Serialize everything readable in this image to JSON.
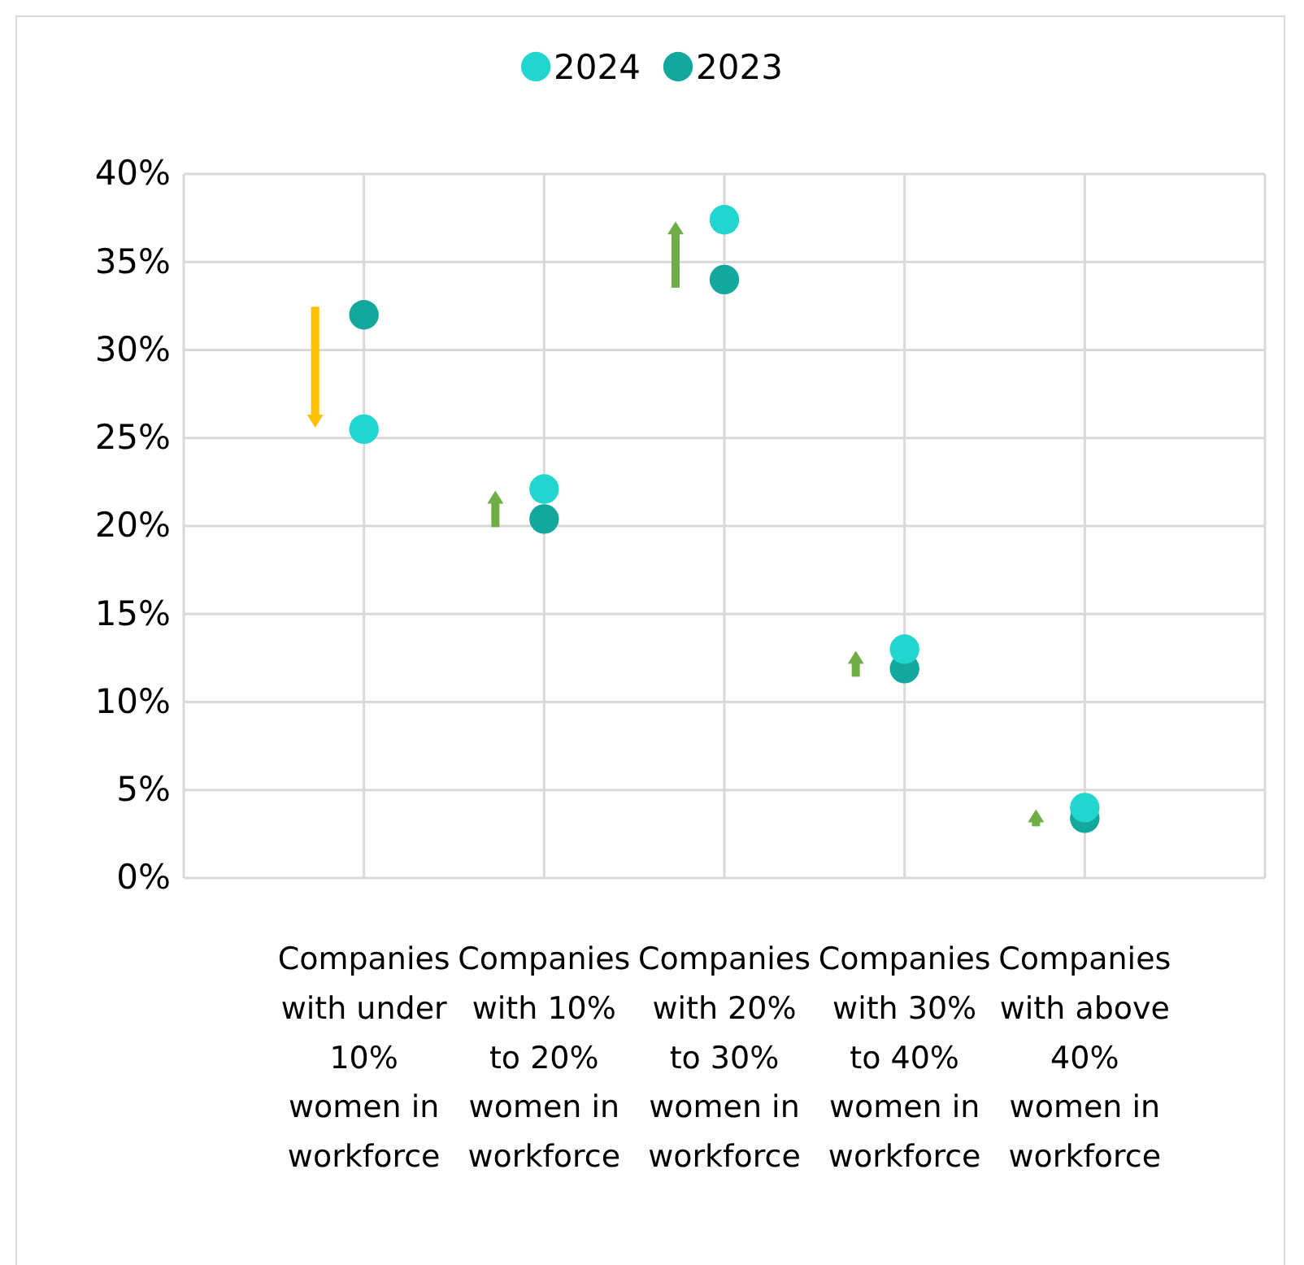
{
  "chart_data": {
    "type": "scatter",
    "categories": [
      "Companies with under 10% women in workforce",
      "Companies with 10% to 20% women in workforce",
      "Companies with 20% to 30% women in workforce",
      "Companies with 30% to 40% women in workforce",
      "Companies with above 40% women in workforce"
    ],
    "series": [
      {
        "name": "2024",
        "color": "#22d6d0",
        "values": [
          25.5,
          22.1,
          37.4,
          13.0,
          4.0
        ]
      },
      {
        "name": "2023",
        "color": "#13a89e",
        "values": [
          32.0,
          20.4,
          34.0,
          11.9,
          3.4
        ]
      }
    ],
    "ylim": [
      0,
      40
    ],
    "yticks": [
      {
        "value": 0,
        "label": "0%"
      },
      {
        "value": 5,
        "label": "5%"
      },
      {
        "value": 10,
        "label": "10%"
      },
      {
        "value": 15,
        "label": "15%"
      },
      {
        "value": 20,
        "label": "20%"
      },
      {
        "value": 25,
        "label": "25%"
      },
      {
        "value": 30,
        "label": "30%"
      },
      {
        "value": 35,
        "label": "35%"
      },
      {
        "value": 40,
        "label": "40%"
      }
    ],
    "grid": true,
    "legend": "top",
    "marker": "circle"
  }
}
